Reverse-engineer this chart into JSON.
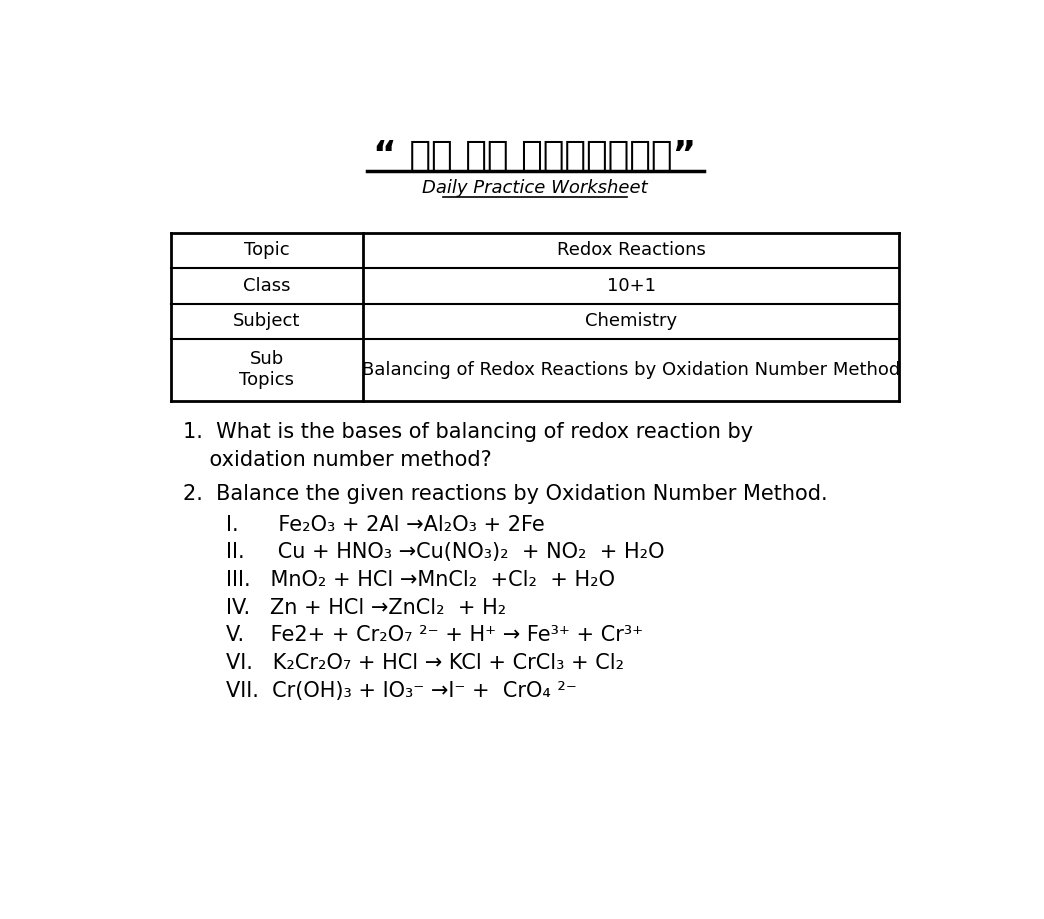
{
  "title_hindi": "“ हर घर पाठशाला”",
  "title_english": "Daily Practice Worksheet",
  "bg_color": "#ffffff",
  "table_rows": [
    [
      "Topic",
      "Redox Reactions"
    ],
    [
      "Class",
      "10+1"
    ],
    [
      "Subject",
      "Chemistry"
    ],
    [
      "Sub\nTopics",
      "Balancing of Redox Reactions by Oxidation Number Method"
    ]
  ],
  "q1_line1": "1.  What is the bases of balancing of redox reaction by",
  "q1_line2": "    oxidation number method?",
  "q2": "2.  Balance the given reactions by Oxidation Number Method.",
  "reactions": [
    "I.      Fe₂O₃ + 2Al →Al₂O₃ + 2Fe",
    "II.     Cu + HNO₃ →Cu(NO₃)₂  + NO₂  + H₂O",
    "III.   MnO₂ + HCl →MnCl₂  +Cl₂  + H₂O",
    "IV.   Zn + HCl →ZnCl₂  + H₂",
    "V.    Fe2+ + Cr₂O₇ ²⁻ + H⁺ → Fe³⁺ + Cr³⁺",
    "VI.   K₂Cr₂O₇ + HCl → KCl + CrCl₃ + Cl₂",
    "VII.  Cr(OH)₃ + IO₃⁻ →I⁻ +  CrO₄ ²⁻"
  ],
  "font_size_title_hindi": 26,
  "font_size_title_english": 13,
  "font_size_table": 13,
  "font_size_content": 15
}
